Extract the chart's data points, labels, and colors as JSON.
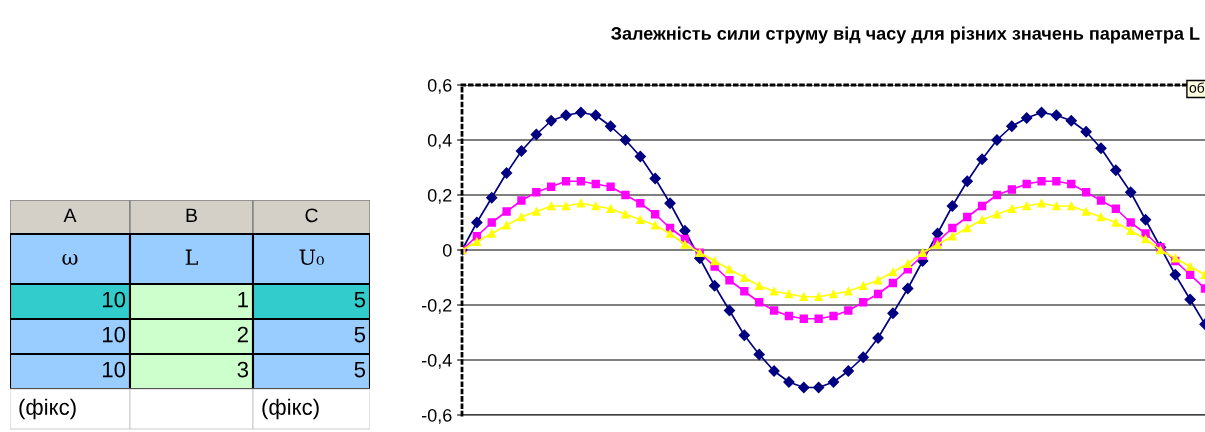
{
  "chart_data": [
    {
      "type": "other",
      "categories": [
        "A",
        "B",
        "C"
      ],
      "cells": [
        [
          "ω",
          "L",
          "U₀"
        ],
        [
          "10",
          "1",
          "5"
        ],
        [
          "10",
          "2",
          "5"
        ],
        [
          "10",
          "3",
          "5"
        ],
        [
          "(фікс)",
          null,
          "(фікс)"
        ]
      ],
      "colors": [
        "#d4d0c8",
        "#d4d0c8",
        "#d4d0c8",
        "#99ccff",
        "#99ccff",
        "#99ccff",
        "#33cccc",
        "#ccffcc",
        "#33cccc",
        "#99ccff",
        "#ccffcc",
        "#99ccff",
        "#99ccff",
        "#ccffcc",
        "#99ccff",
        "#ffffff",
        "#ffffff",
        "#ffffff"
      ]
    },
    {
      "type": "line",
      "title": "Залежність сили струму від часу для різних значень параметра L",
      "categories": [
        null,
        null,
        null,
        null,
        null,
        null,
        null,
        null,
        null,
        null,
        null,
        null,
        null,
        null,
        null,
        null,
        null,
        null,
        null,
        null,
        null,
        null,
        null,
        null,
        null,
        null,
        null,
        null,
        null,
        null,
        null,
        null,
        null,
        null,
        null,
        null,
        null,
        null,
        null,
        null,
        null,
        null,
        null,
        null,
        null,
        null,
        null,
        null,
        null,
        null,
        null
      ],
      "series": [
        {
          "color": "#000080",
          "marker": "diamond",
          "values": [
            0,
            0.1,
            0.19,
            0.28,
            0.36,
            0.42,
            0.47,
            0.49,
            0.5,
            0.49,
            0.45,
            0.4,
            0.34,
            0.26,
            0.17,
            0.07,
            -0.03,
            -0.13,
            -0.22,
            -0.31,
            -0.38,
            -0.44,
            -0.48,
            -0.5,
            -0.5,
            -0.48,
            -0.44,
            -0.39,
            -0.32,
            -0.23,
            -0.14,
            -0.04,
            0.06,
            0.16,
            0.25,
            0.33,
            0.4,
            0.45,
            0.48,
            0.5,
            0.49,
            0.47,
            0.43,
            0.37,
            0.29,
            0.21,
            0.11,
            0.01,
            -0.09,
            -0.18,
            -0.27
          ]
        },
        {
          "color": "#ff00ff",
          "marker": "square",
          "values": [
            0,
            0.05,
            0.1,
            0.14,
            0.18,
            0.21,
            0.23,
            0.25,
            0.25,
            0.24,
            0.23,
            0.2,
            0.17,
            0.13,
            0.08,
            0.04,
            -0.01,
            -0.06,
            -0.11,
            -0.15,
            -0.19,
            -0.22,
            -0.24,
            -0.25,
            -0.25,
            -0.24,
            -0.22,
            -0.19,
            -0.16,
            -0.12,
            -0.07,
            -0.02,
            0.03,
            0.08,
            0.12,
            0.16,
            0.2,
            0.22,
            0.24,
            0.25,
            0.25,
            0.24,
            0.21,
            0.18,
            0.15,
            0.1,
            0.06,
            0.01,
            -0.04,
            -0.09,
            -0.14
          ]
        },
        {
          "color": "#ffff00",
          "marker": "triangle",
          "values": [
            0,
            0.03,
            0.06,
            0.09,
            0.12,
            0.14,
            0.16,
            0.16,
            0.17,
            0.16,
            0.15,
            0.13,
            0.11,
            0.09,
            0.06,
            0.02,
            -0.01,
            -0.04,
            -0.07,
            -0.1,
            -0.13,
            -0.15,
            -0.16,
            -0.17,
            -0.17,
            -0.16,
            -0.15,
            -0.13,
            -0.11,
            -0.08,
            -0.05,
            -0.01,
            0.02,
            0.05,
            0.08,
            0.11,
            0.13,
            0.15,
            0.16,
            0.17,
            0.16,
            0.16,
            0.14,
            0.12,
            0.1,
            0.07,
            0.04,
            0.0,
            -0.03,
            -0.06,
            -0.09
          ]
        }
      ],
      "ylim": [
        -0.6,
        0.6
      ],
      "yticks": [
        {
          "value": -0.6,
          "label": "-0,6"
        },
        {
          "value": -0.4,
          "label": "-0,4"
        },
        {
          "value": -0.2,
          "label": "-0,2"
        },
        {
          "value": 0,
          "label": "0"
        },
        {
          "value": 0.2,
          "label": "0,2"
        },
        {
          "value": 0.4,
          "label": "0,4"
        },
        {
          "value": 0.6,
          "label": "0,6"
        }
      ],
      "grid": "y",
      "tick_labels": "y",
      "annotations": [
        "об"
      ]
    }
  ]
}
